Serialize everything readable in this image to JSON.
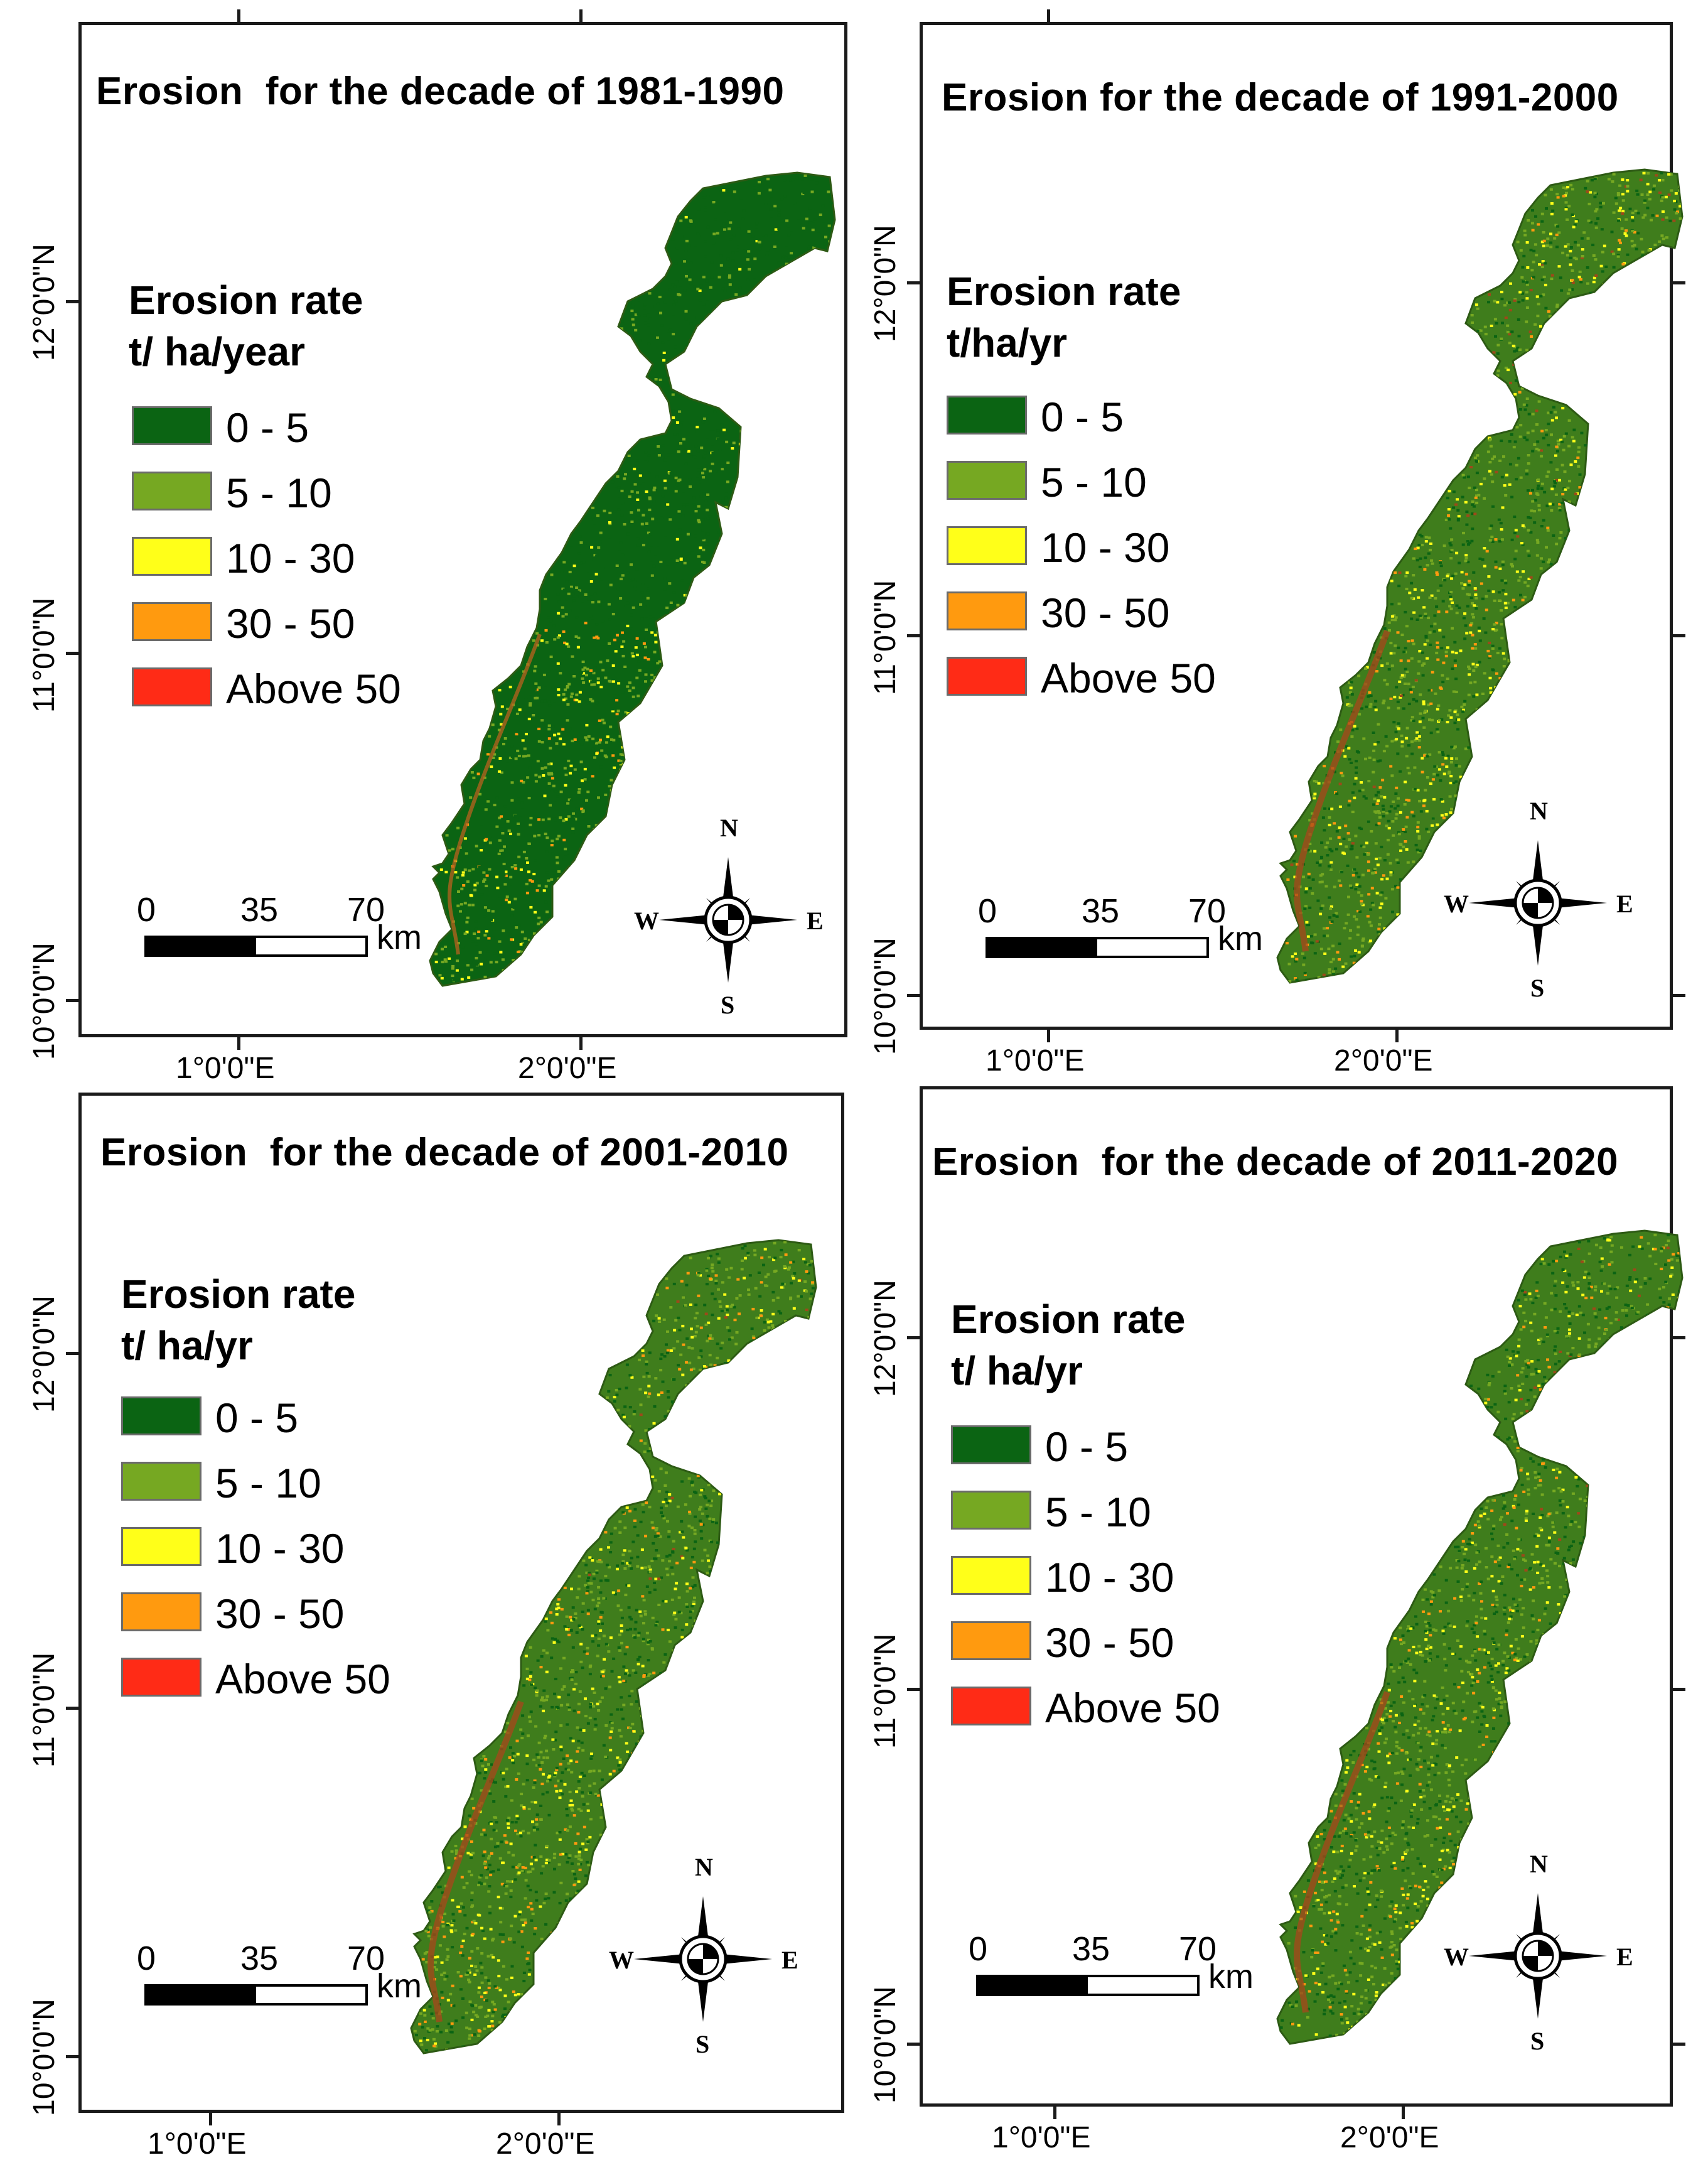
{
  "colors": {
    "class_0_5": "#0b6413",
    "class_5_10": "#76a822",
    "class_10_30": "#ffff19",
    "class_30_50": "#ff9a0f",
    "class_above_50": "#ff2b16"
  },
  "scale_bar": {
    "labels": [
      "0",
      "35",
      "70"
    ],
    "unit": "km"
  },
  "compass": {
    "n": "N",
    "s": "S",
    "e": "E",
    "w": "W"
  },
  "longitude_ticks": [
    "1°0'0\"E",
    "2°0'0\"E"
  ],
  "latitude_ticks": [
    "10°0'0\"N",
    "11°0'0\"N",
    "12°0'0\"N"
  ],
  "legend_classes": [
    "0 - 5",
    "5 - 10",
    "10 - 30",
    "30 - 50",
    "Above 50"
  ],
  "maps": [
    {
      "title": "Erosion  for the decade of 1981-1990",
      "legend_title": "Erosion rate\nt/ ha/year",
      "dominant_class": "0 - 5"
    },
    {
      "title": "Erosion for the decade of 1991-2000",
      "legend_title": "Erosion rate\nt/ha/yr",
      "dominant_class": "5 - 10"
    },
    {
      "title": "Erosion  for the decade of 2001-2010",
      "legend_title": "Erosion rate\nt/ ha/yr",
      "dominant_class": "5 - 10"
    },
    {
      "title": "Erosion  for the decade of 2011-2020",
      "legend_title": "Erosion rate\nt/ ha/yr",
      "dominant_class": "5 - 10"
    }
  ]
}
